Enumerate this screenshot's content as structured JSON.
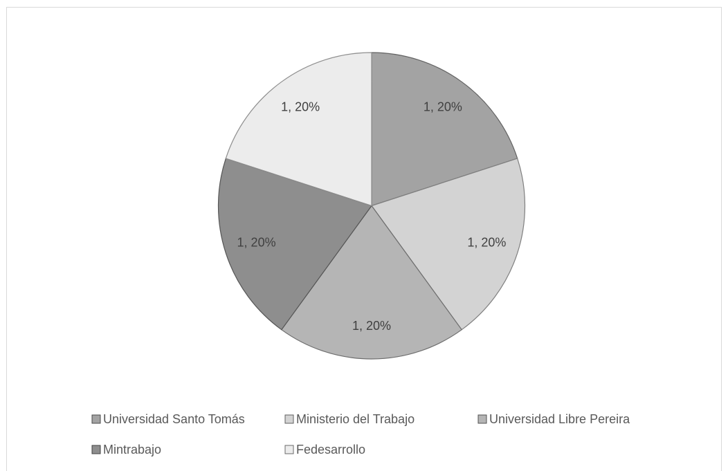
{
  "chart_data": {
    "type": "pie",
    "categories": [
      "Universidad Santo Tomás",
      "Ministerio del Trabajo",
      "Universidad Libre Pereira",
      "Mintrabajo",
      "Fedesarrollo"
    ],
    "values": [
      1,
      1,
      1,
      1,
      1
    ],
    "value_labels": [
      "1, 20%",
      "1, 20%",
      "1, 20%",
      "1, 20%",
      "1, 20%"
    ],
    "colors": [
      "#a3a3a3",
      "#d3d3d3",
      "#b5b5b5",
      "#8e8e8e",
      "#ececec"
    ],
    "legend": "bottom"
  }
}
